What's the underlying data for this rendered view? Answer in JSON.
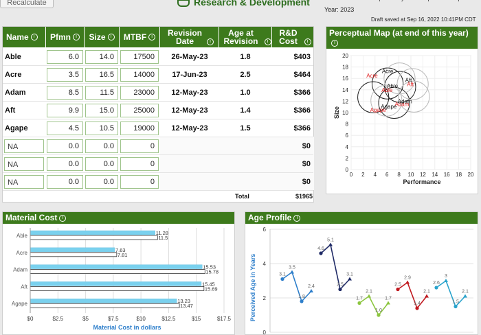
{
  "top": {
    "recalculate_label": "Recalculate",
    "app_title": "Research & Development",
    "year_label": "Year: 2023",
    "draft_saved": "Draft saved at Sep 16, 2022 10:41PM CDT"
  },
  "table": {
    "headers": {
      "name": "Name",
      "pfmn": "Pfmn",
      "size": "Size",
      "mtbf": "MTBF",
      "revision_date": "Revision Date",
      "age_at_revision": "Age at Revision",
      "rd_cost": "R&D Cost"
    },
    "rows": [
      {
        "name": "Able",
        "pfmn": "6.0",
        "size": "14.0",
        "mtbf": "17500",
        "revision_date": "26-May-23",
        "age": "1.8",
        "cost": "$403"
      },
      {
        "name": "Acre",
        "pfmn": "3.5",
        "size": "16.5",
        "mtbf": "14000",
        "revision_date": "17-Jun-23",
        "age": "2.5",
        "cost": "$464"
      },
      {
        "name": "Adam",
        "pfmn": "8.5",
        "size": "11.5",
        "mtbf": "23000",
        "revision_date": "12-May-23",
        "age": "1.0",
        "cost": "$366"
      },
      {
        "name": "Aft",
        "pfmn": "9.9",
        "size": "15.0",
        "mtbf": "25000",
        "revision_date": "12-May-23",
        "age": "1.4",
        "cost": "$366"
      },
      {
        "name": "Agape",
        "pfmn": "4.5",
        "size": "10.5",
        "mtbf": "19000",
        "revision_date": "12-May-23",
        "age": "1.5",
        "cost": "$366"
      },
      {
        "name": "NA",
        "pfmn": "0.0",
        "size": "0.0",
        "mtbf": "0",
        "revision_date": "",
        "age": "",
        "cost": "$0"
      },
      {
        "name": "NA",
        "pfmn": "0.0",
        "size": "0.0",
        "mtbf": "0",
        "revision_date": "",
        "age": "",
        "cost": "$0"
      },
      {
        "name": "NA",
        "pfmn": "0.0",
        "size": "0.0",
        "mtbf": "0",
        "revision_date": "",
        "age": "",
        "cost": "$0"
      }
    ],
    "total_label": "Total",
    "total_value": "$1965"
  },
  "perceptual_map": {
    "title": "Perceptual Map (at end of this year)",
    "chart_data": {
      "type": "scatter",
      "xlabel": "Performance",
      "ylabel": "Size",
      "xlim": [
        0,
        20
      ],
      "ylim": [
        0,
        20
      ],
      "xticks": [
        0,
        2,
        4,
        6,
        8,
        10,
        12,
        14,
        16,
        18,
        20
      ],
      "yticks": [
        0,
        2,
        4,
        6,
        8,
        10,
        12,
        14,
        16,
        18,
        20
      ],
      "points": [
        {
          "label": "Acre",
          "x": 3.5,
          "y": 16.5,
          "color": "#e02020"
        },
        {
          "label": "Aft",
          "x": 9.9,
          "y": 15.0,
          "color": "#e02020"
        },
        {
          "label": "Able",
          "x": 6.0,
          "y": 14.0,
          "color": "#e02020"
        },
        {
          "label": "Adam",
          "x": 8.5,
          "y": 11.5,
          "color": "#e02020"
        },
        {
          "label": "Agape",
          "x": 4.5,
          "y": 10.5,
          "color": "#e02020"
        },
        {
          "label": "Acre",
          "x": 6.1,
          "y": 17.3,
          "color": "#111111"
        },
        {
          "label": "Aft",
          "x": 9.6,
          "y": 15.7,
          "color": "#111111"
        },
        {
          "label": "Able",
          "x": 6.9,
          "y": 14.7,
          "color": "#111111"
        },
        {
          "label": "Adam",
          "x": 9.0,
          "y": 12.0,
          "color": "#111111"
        },
        {
          "label": "Agape",
          "x": 6.3,
          "y": 11.1,
          "color": "#111111"
        }
      ],
      "circles": [
        {
          "x": 6.1,
          "y": 15.1,
          "color": "#222222"
        },
        {
          "x": 8.2,
          "y": 14.5,
          "color": "#222222"
        },
        {
          "x": 3.7,
          "y": 12.7,
          "color": "#222222"
        },
        {
          "x": 7.2,
          "y": 11.7,
          "color": "#222222"
        },
        {
          "x": 8.1,
          "y": 16.0,
          "color": "#bbbbbb"
        },
        {
          "x": 10.3,
          "y": 15.0,
          "color": "#bbbbbb"
        },
        {
          "x": 10.5,
          "y": 12.8,
          "color": "#bbbbbb"
        },
        {
          "x": 5.9,
          "y": 12.1,
          "color": "#bbbbbb"
        }
      ]
    }
  },
  "material_cost": {
    "title": "Material Cost",
    "chart_data": {
      "type": "bar",
      "orientation": "horizontal",
      "categories": [
        "Able",
        "Acre",
        "Adam",
        "Aft",
        "Agape"
      ],
      "series": [
        {
          "values": [
            11.28,
            7.63,
            15.53,
            15.45,
            13.23
          ],
          "color": "#7ad1ee"
        },
        {
          "values": [
            11.5,
            7.81,
            15.78,
            15.69,
            13.47
          ],
          "color": "#ffffff"
        }
      ],
      "xlabel": "Material Cost in dollars",
      "xlim": [
        0,
        17.5
      ],
      "xticks": [
        "$0",
        "$2.5",
        "$5",
        "$7.5",
        "$10",
        "$12.5",
        "$15",
        "$17.5"
      ],
      "grid": true
    }
  },
  "age_profile": {
    "title": "Age Profile",
    "chart_data": {
      "type": "line",
      "ylabel": "Perceived Age in Years",
      "ylim": [
        0,
        6
      ],
      "yticks": [
        0,
        2,
        4,
        6
      ],
      "series": [
        {
          "points": [
            {
              "x": 0,
              "y": 3.1
            },
            {
              "x": 1,
              "y": 3.5
            },
            {
              "x": 2,
              "y": 1.8
            },
            {
              "x": 3,
              "y": 2.4
            }
          ],
          "color": "#2e7fcb",
          "labels": [
            "3.1",
            "3.5",
            "1.8",
            "2.4"
          ]
        },
        {
          "points": [
            {
              "x": 4,
              "y": 4.6
            },
            {
              "x": 5,
              "y": 5.1
            },
            {
              "x": 6,
              "y": 2.5
            },
            {
              "x": 7,
              "y": 3.1
            }
          ],
          "color": "#1f2a66",
          "labels": [
            "4.6",
            "5.1",
            "2.5",
            "3.1"
          ]
        },
        {
          "points": [
            {
              "x": 8,
              "y": 1.7
            },
            {
              "x": 9,
              "y": 2.1
            },
            {
              "x": 10,
              "y": 1.0
            },
            {
              "x": 11,
              "y": 1.7
            }
          ],
          "color": "#8cc63f",
          "labels": [
            "1.7",
            "2.1",
            "1.0",
            "1.7"
          ]
        },
        {
          "points": [
            {
              "x": 12,
              "y": 2.5
            },
            {
              "x": 13,
              "y": 2.9
            },
            {
              "x": 14,
              "y": 1.4
            },
            {
              "x": 15,
              "y": 2.1
            }
          ],
          "color": "#c0181e",
          "labels": [
            "2.5",
            "2.9",
            "1.4",
            "2.1"
          ]
        },
        {
          "points": [
            {
              "x": 16,
              "y": 2.6
            },
            {
              "x": 17,
              "y": 3.0
            },
            {
              "x": 18,
              "y": 1.5
            },
            {
              "x": 19,
              "y": 2.1
            }
          ],
          "color": "#29a3cc",
          "labels": [
            "2.6",
            "3",
            "1.5",
            "2.1"
          ]
        }
      ]
    }
  }
}
